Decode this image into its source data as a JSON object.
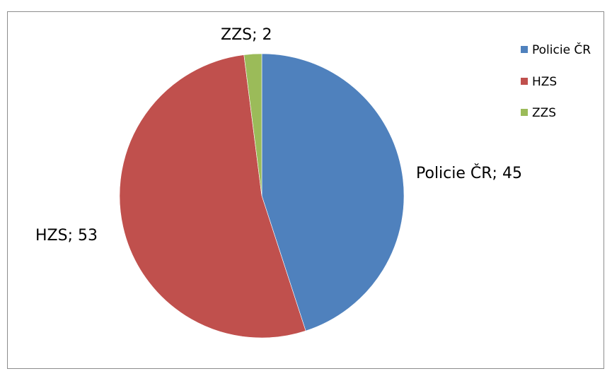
{
  "chart_data": {
    "type": "pie",
    "categories": [
      "Policie ČR",
      "HZS",
      "ZZS"
    ],
    "values": [
      45,
      53,
      2
    ],
    "colors": [
      "#4f81bd",
      "#c0504d",
      "#9bbb59"
    ],
    "data_labels": [
      "Policie ČR; 45",
      "HZS; 53",
      "ZZS; 2"
    ],
    "legend": {
      "placement": "top-right",
      "entries": [
        "Policie ČR",
        "HZS",
        "ZZS"
      ]
    }
  }
}
